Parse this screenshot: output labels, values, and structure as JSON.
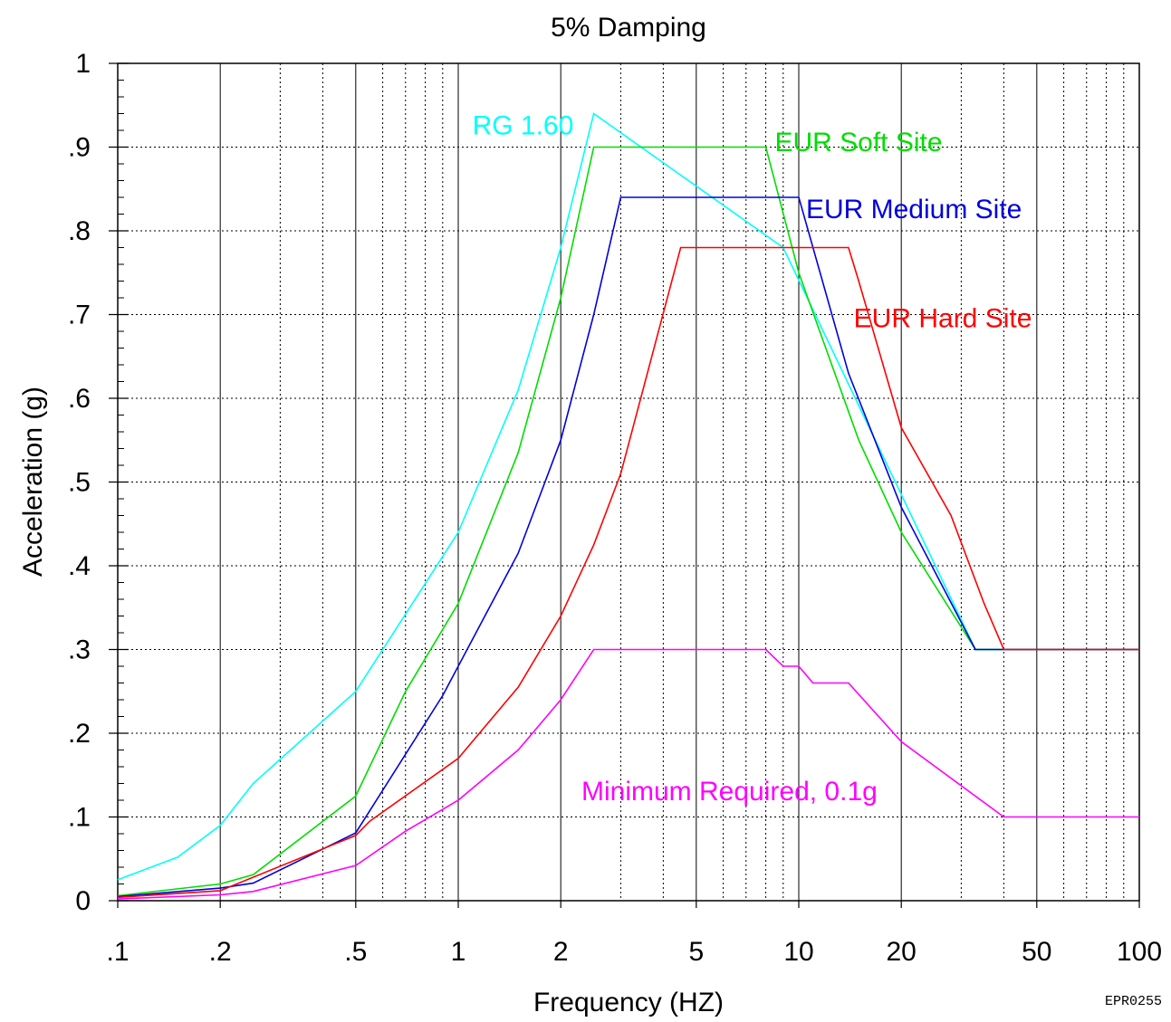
{
  "chart_data": {
    "type": "line",
    "title": "5% Damping",
    "xlabel": "Frequency (HZ)",
    "ylabel": "Acceleration (g)",
    "xscale": "log",
    "xlim": [
      0.1,
      100
    ],
    "ylim": [
      0,
      1
    ],
    "grid": true,
    "xticks": [
      {
        "value": 0.1,
        "label": ".1"
      },
      {
        "value": 0.2,
        "label": ".2"
      },
      {
        "value": 0.5,
        "label": ".5"
      },
      {
        "value": 1,
        "label": "1"
      },
      {
        "value": 2,
        "label": "2"
      },
      {
        "value": 5,
        "label": "5"
      },
      {
        "value": 10,
        "label": "10"
      },
      {
        "value": 20,
        "label": "20"
      },
      {
        "value": 50,
        "label": "50"
      },
      {
        "value": 100,
        "label": "100"
      }
    ],
    "yticks": [
      {
        "value": 0,
        "label": "0"
      },
      {
        "value": 0.1,
        "label": ".1"
      },
      {
        "value": 0.2,
        "label": ".2"
      },
      {
        "value": 0.3,
        "label": ".3"
      },
      {
        "value": 0.4,
        "label": ".4"
      },
      {
        "value": 0.5,
        "label": ".5"
      },
      {
        "value": 0.6,
        "label": ".6"
      },
      {
        "value": 0.7,
        "label": ".7"
      },
      {
        "value": 0.8,
        "label": ".8"
      },
      {
        "value": 0.9,
        "label": ".9"
      },
      {
        "value": 1,
        "label": "1"
      }
    ],
    "series": [
      {
        "name": "RG 1.60",
        "color": "#00ffff",
        "x": [
          0.1,
          0.15,
          0.2,
          0.25,
          0.5,
          1,
          1.5,
          2,
          2.5,
          9,
          33,
          100
        ],
        "y": [
          0.025,
          0.052,
          0.09,
          0.14,
          0.25,
          0.44,
          0.61,
          0.78,
          0.94,
          0.78,
          0.3,
          0.3
        ]
      },
      {
        "name": "EUR Soft Site",
        "color": "#00dd00",
        "x": [
          0.1,
          0.2,
          0.25,
          0.5,
          0.7,
          1,
          1.5,
          2,
          2.5,
          8,
          10,
          15,
          20,
          33,
          100
        ],
        "y": [
          0.006,
          0.02,
          0.031,
          0.125,
          0.25,
          0.355,
          0.535,
          0.72,
          0.9,
          0.9,
          0.75,
          0.55,
          0.44,
          0.3,
          0.3
        ]
      },
      {
        "name": "EUR Medium Site",
        "color": "#0000dd",
        "x": [
          0.1,
          0.2,
          0.25,
          0.5,
          0.9,
          1.5,
          2,
          2.5,
          3,
          10,
          14,
          20,
          33,
          100
        ],
        "y": [
          0.005,
          0.015,
          0.021,
          0.081,
          0.245,
          0.415,
          0.55,
          0.7,
          0.84,
          0.84,
          0.63,
          0.47,
          0.3,
          0.3
        ]
      },
      {
        "name": "EUR Hard Site",
        "color": "#ff0000",
        "x": [
          0.1,
          0.2,
          0.5,
          0.55,
          1,
          1.5,
          2,
          2.5,
          3,
          4.5,
          14,
          15,
          20,
          28,
          35,
          40,
          100
        ],
        "y": [
          0.004,
          0.012,
          0.078,
          0.095,
          0.17,
          0.255,
          0.34,
          0.425,
          0.51,
          0.78,
          0.78,
          0.74,
          0.565,
          0.46,
          0.355,
          0.3,
          0.3
        ]
      },
      {
        "name": "Minimum Required, 0.1g",
        "color": "#ff00ff",
        "x": [
          0.1,
          0.2,
          0.25,
          0.5,
          0.7,
          1,
          1.5,
          2,
          2.5,
          8,
          9,
          10,
          11,
          14,
          20,
          40,
          100
        ],
        "y": [
          0.002,
          0.007,
          0.011,
          0.042,
          0.083,
          0.12,
          0.18,
          0.24,
          0.3,
          0.3,
          0.28,
          0.28,
          0.26,
          0.26,
          0.19,
          0.1,
          0.1
        ]
      }
    ],
    "annotations": [
      {
        "text": "RG 1.60",
        "color": "#00ffff",
        "x": 1.1,
        "y": 0.915
      },
      {
        "text": "EUR Soft Site",
        "color": "#00dd00",
        "x": 8.5,
        "y": 0.895
      },
      {
        "text": "EUR Medium Site",
        "color": "#0000dd",
        "x": 10.5,
        "y": 0.815
      },
      {
        "text": "EUR Hard Site",
        "color": "#ff0000",
        "x": 14.5,
        "y": 0.685
      },
      {
        "text": "Minimum Required, 0.1g",
        "color": "#ff00ff",
        "x": 2.3,
        "y": 0.12
      }
    ],
    "footnote": "EPR0255"
  }
}
